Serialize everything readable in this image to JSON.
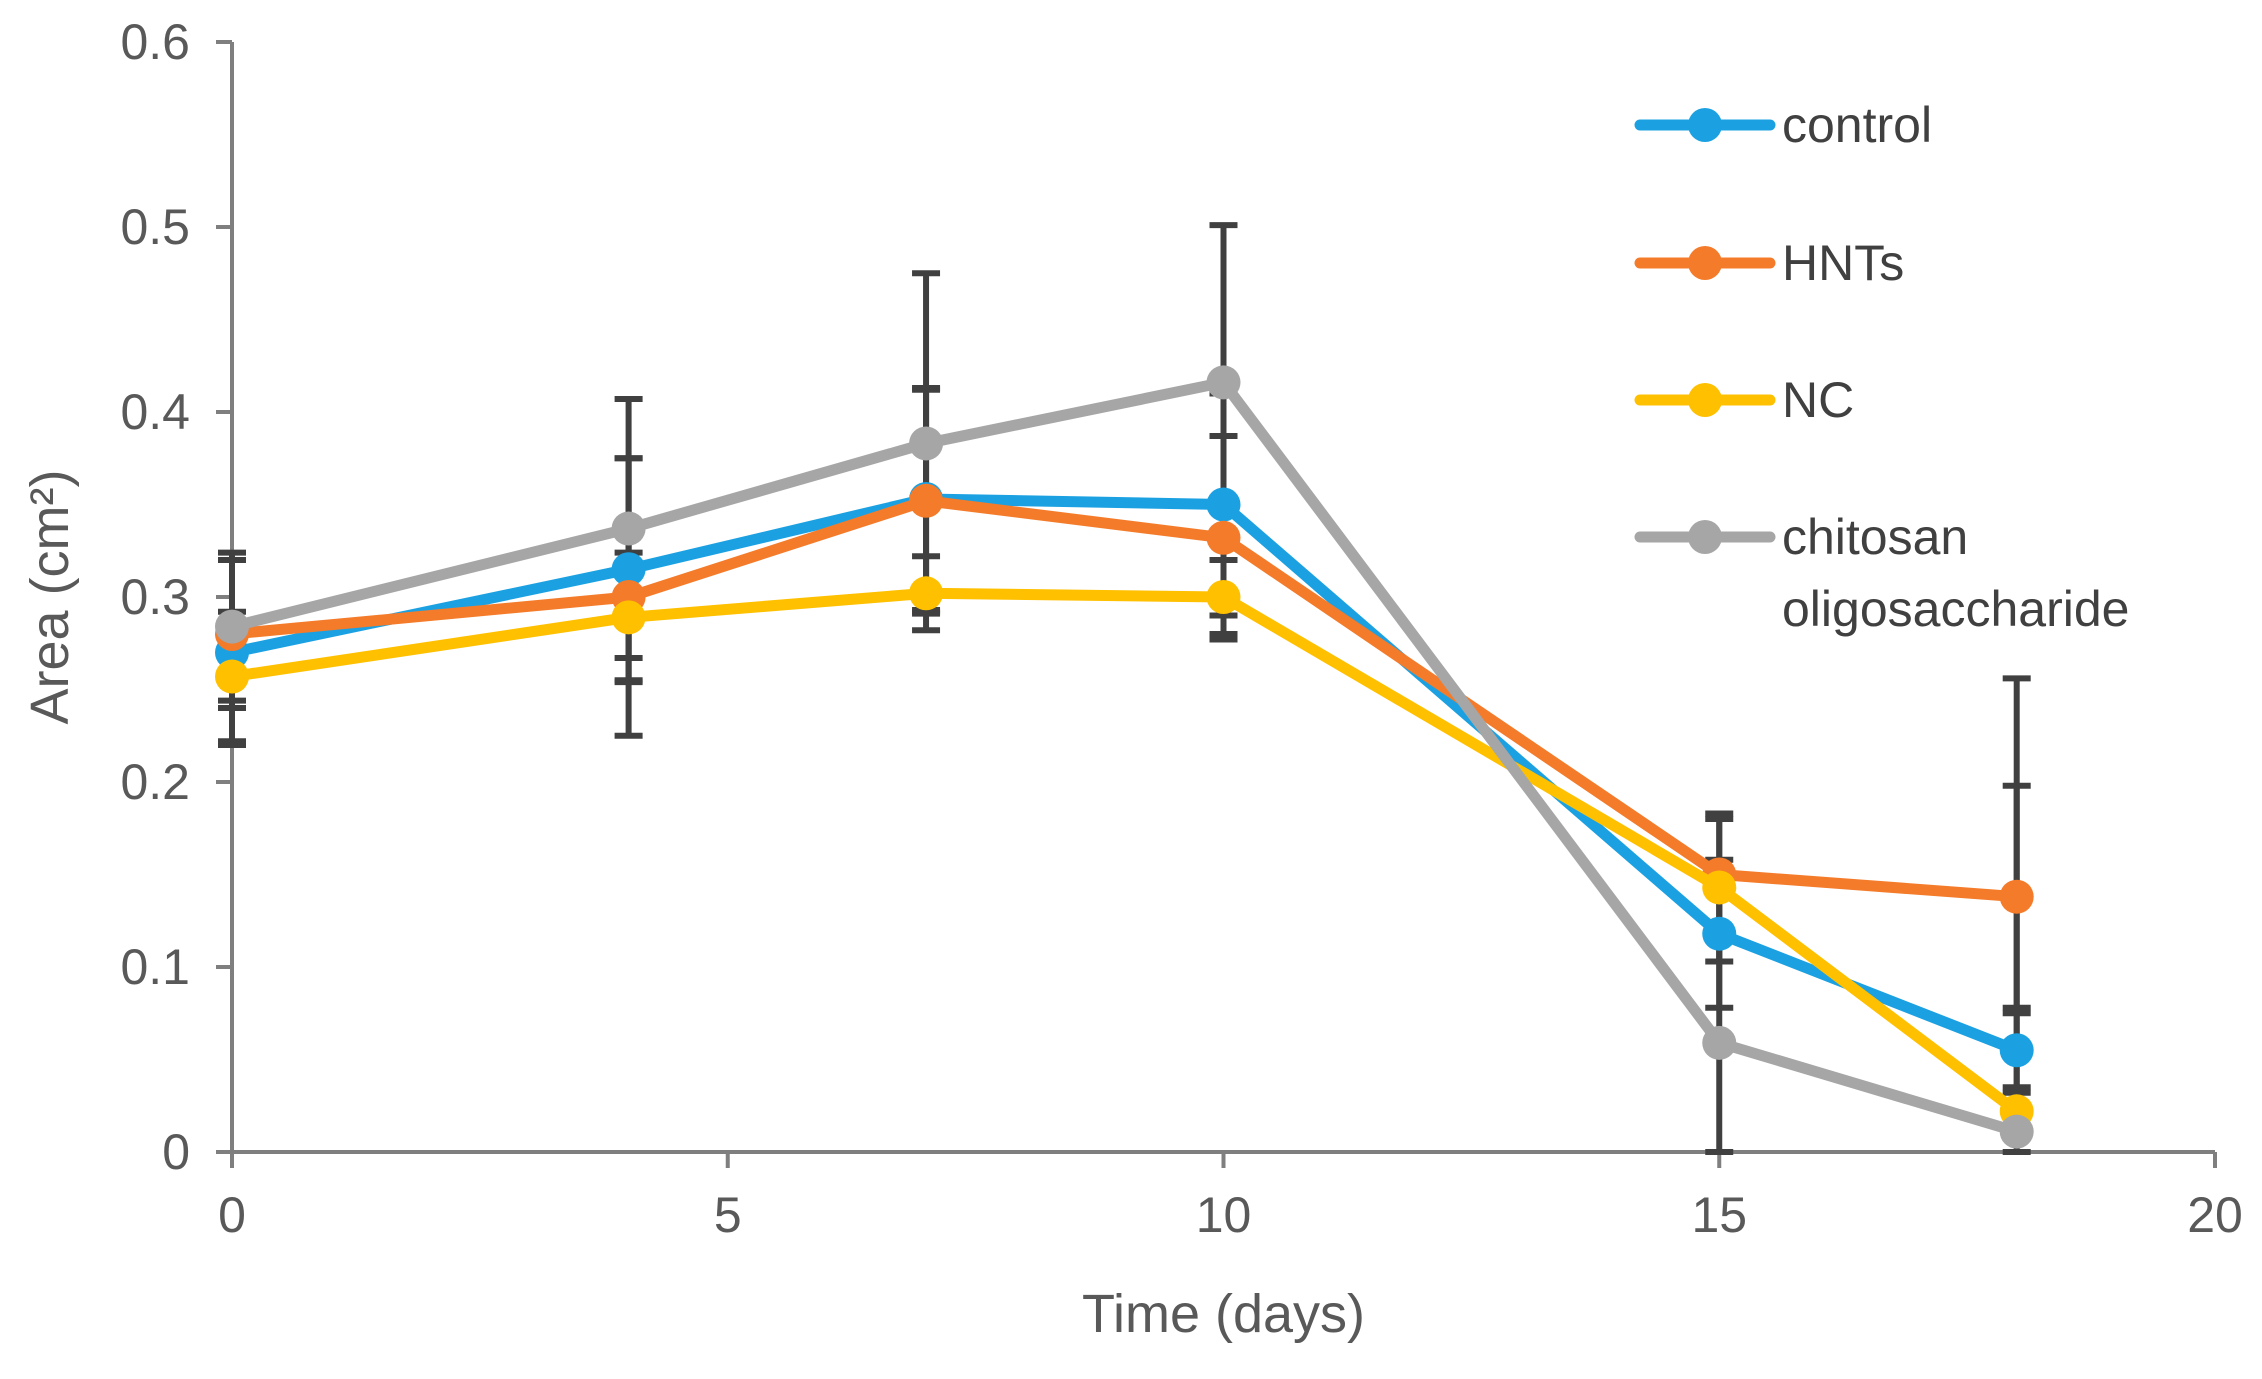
{
  "chart_data": {
    "type": "line",
    "title": "",
    "xlabel": "Time (days)",
    "ylabel": "Area (cm²)",
    "xlim": [
      0,
      20
    ],
    "ylim": [
      0,
      0.6
    ],
    "x_ticks": [
      "0",
      "5",
      "10",
      "15",
      "20"
    ],
    "y_ticks": [
      "0",
      "0.1",
      "0.2",
      "0.3",
      "0.4",
      "0.5",
      "0.6"
    ],
    "grid": false,
    "legend": "right",
    "x": [
      0,
      4,
      7,
      10,
      15,
      18
    ],
    "error_bar_color": "#404040",
    "series": [
      {
        "name": "control",
        "color": "#1BA1E2",
        "values": [
          0.27,
          0.315,
          0.353,
          0.35,
          0.118,
          0.055
        ],
        "errors": [
          0.05,
          0.06,
          0.06,
          0.06,
          0.04,
          0.02
        ]
      },
      {
        "name": "HNTs",
        "color": "#F47B2A",
        "values": [
          0.28,
          0.3,
          0.352,
          0.332,
          0.15,
          0.138
        ],
        "errors": [
          0.04,
          0.075,
          0.06,
          0.055,
          0.03,
          0.06
        ]
      },
      {
        "name": "NC",
        "color": "#FFC000",
        "values": [
          0.257,
          0.289,
          0.302,
          0.3,
          0.143,
          0.022
        ],
        "errors": [
          0.035,
          0.035,
          0.02,
          0.02,
          0.04,
          0.01
        ]
      },
      {
        "name": "chitosan oligosaccharide",
        "color": "#A6A6A6",
        "legend_lines": [
          "chitosan",
          "oligosaccharide"
        ],
        "values": [
          0.284,
          0.337,
          0.383,
          0.416,
          0.059,
          0.011
        ],
        "errors": [
          0.04,
          0.07,
          0.092,
          0.085,
          0.06,
          0.245
        ]
      }
    ]
  }
}
